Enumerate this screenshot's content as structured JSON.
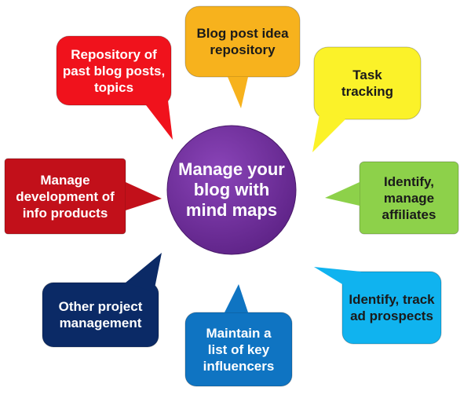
{
  "hub": {
    "text": "Manage your blog with mind maps",
    "color": "#6b2c95"
  },
  "nodes": [
    {
      "id": "blog-post-idea-repository",
      "text": "Blog post idea repository",
      "fill": "#f7b21d",
      "text_color": "#1a1a1a"
    },
    {
      "id": "task-tracking",
      "text": "Task tracking",
      "fill": "#fbf229",
      "text_color": "#1a1a1a"
    },
    {
      "id": "identify-manage-affiliates",
      "text": "Identify, manage affiliates",
      "fill": "#8dd14a",
      "text_color": "#1a1a1a"
    },
    {
      "id": "identify-track-ad-prospects",
      "text": "Identify, track ad prospects",
      "fill": "#10b3ef",
      "text_color": "#1a1a1a"
    },
    {
      "id": "maintain-key-influencers",
      "text": "Maintain a list of key influencers",
      "fill": "#0f74c2",
      "text_color": "#ffffff"
    },
    {
      "id": "other-project-management",
      "text": "Other project management",
      "fill": "#0b2a66",
      "text_color": "#ffffff"
    },
    {
      "id": "manage-info-products",
      "text": "Manage development of info products",
      "fill": "#c2101a",
      "text_color": "#ffffff"
    },
    {
      "id": "repository-past-blog-posts",
      "text": "Repository of past blog posts, topics",
      "fill": "#f0121c",
      "text_color": "#ffffff"
    }
  ]
}
